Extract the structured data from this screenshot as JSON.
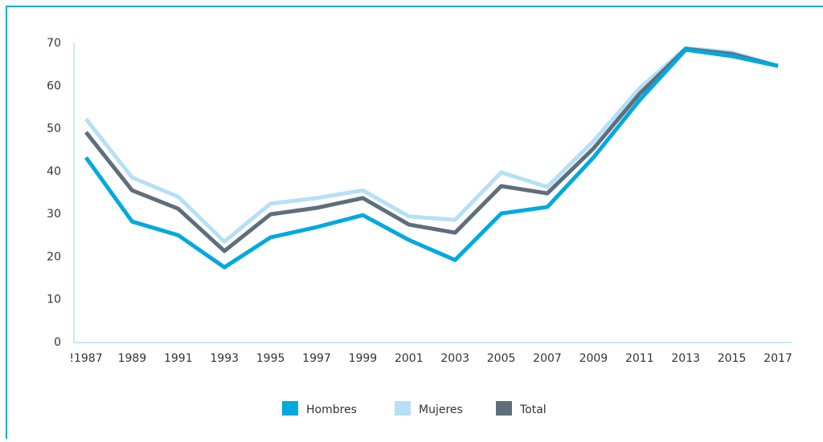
{
  "chart_data": {
    "type": "line",
    "categories": [
      "!1987",
      "1989",
      "1991",
      "1993",
      "1995",
      "1997",
      "1999",
      "2001",
      "2003",
      "2005",
      "2007",
      "2009",
      "2011",
      "2013",
      "2015",
      "2017"
    ],
    "series": [
      {
        "name": "Hombres",
        "color": "#00a9e0",
        "values": [
          43.3,
          28.3,
          25.1,
          17.6,
          24.6,
          27,
          29.8,
          24,
          19.3,
          30.2,
          31.7,
          43.3,
          56.7,
          68.5,
          67,
          64.7
        ]
      },
      {
        "name": "Mujeres",
        "color": "#b5e0f7",
        "values": [
          52.3,
          38.6,
          34.1,
          23.6,
          32.5,
          33.8,
          35.6,
          29.5,
          28.7,
          39.8,
          36.4,
          47.1,
          59.5,
          68.9,
          67.9,
          64.7
        ]
      },
      {
        "name": "Total",
        "color": "#5f6e7c",
        "values": [
          49.2,
          35.6,
          31.3,
          21.4,
          30,
          31.5,
          33.8,
          27.6,
          25.7,
          36.6,
          34.9,
          45.4,
          58.2,
          68.7,
          67.5,
          64.7
        ]
      }
    ],
    "ylim": [
      0,
      70
    ],
    "yticks": [
      0,
      10,
      20,
      30,
      40,
      50,
      60,
      70
    ],
    "grid": false,
    "legend": "bottom"
  }
}
